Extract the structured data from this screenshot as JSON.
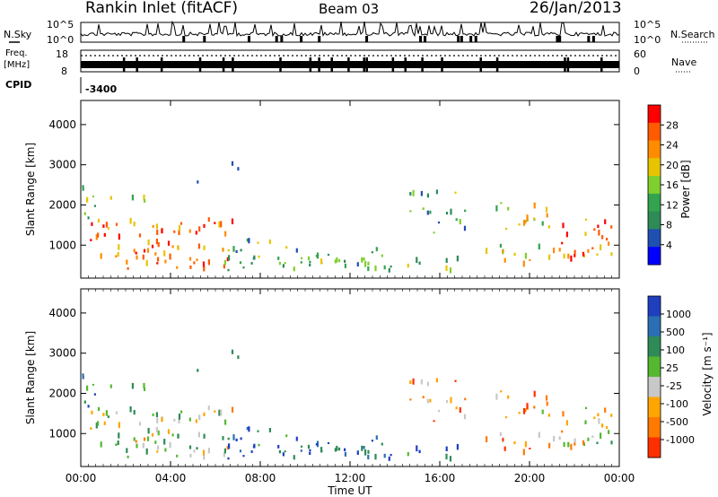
{
  "header": {
    "title": "Rankin Inlet (fitACF)",
    "beam": "Beam 03",
    "date": "26/Jan/2013"
  },
  "top_panels": {
    "nsky_label": "N.Sky",
    "nsearch_label": "N.Search",
    "noise_ticks_left": [
      "10^5",
      "10^0"
    ],
    "noise_ticks_right": [
      "10^5",
      "10^0"
    ],
    "freq_label": "Freq.",
    "freq_unit": "[MHz]",
    "freq_ticks": [
      "18",
      "8"
    ],
    "nave_label": "Nave",
    "nave_ticks": [
      "60",
      "0"
    ],
    "cpid_label": "CPID",
    "cpid_value": "-3400"
  },
  "colors": {
    "power_scale": [
      "#0000ff",
      "#1f4fb0",
      "#2e8b57",
      "#33a34f",
      "#7fcf2f",
      "#e8c400",
      "#ff8c00",
      "#ff5a00",
      "#ff0000"
    ],
    "velocity_scale": [
      "#1f3fbf",
      "#2a6fb3",
      "#2e8b57",
      "#55b830",
      "#c8c8c8",
      "#ffa500",
      "#ff7a00",
      "#ff3000"
    ]
  },
  "chart_data": [
    {
      "type": "heatmap",
      "panel": "power",
      "ylabel": "Slant Range [km]",
      "ylim": [
        180,
        4600
      ],
      "yticks": [
        "1000",
        "2000",
        "3000",
        "4000"
      ],
      "colorbar_label": "Power [dB]",
      "colorbar_ticks": [
        "4",
        "8",
        "12",
        "16",
        "20",
        "24",
        "28"
      ],
      "colorbar_range": [
        0,
        32
      ]
    },
    {
      "type": "heatmap",
      "panel": "velocity",
      "ylabel": "Slant Range [km]",
      "ylim": [
        180,
        4600
      ],
      "yticks": [
        "1000",
        "2000",
        "3000",
        "4000"
      ],
      "xlabel": "Time UT",
      "xticks": [
        "00:00",
        "04:00",
        "08:00",
        "12:00",
        "16:00",
        "20:00",
        "00:00"
      ],
      "colorbar_label": "Velocity [m s⁻¹]",
      "colorbar_ticks": [
        "1000",
        "500",
        "100",
        "25",
        "-25",
        "-100",
        "-500",
        "-1000"
      ]
    }
  ]
}
